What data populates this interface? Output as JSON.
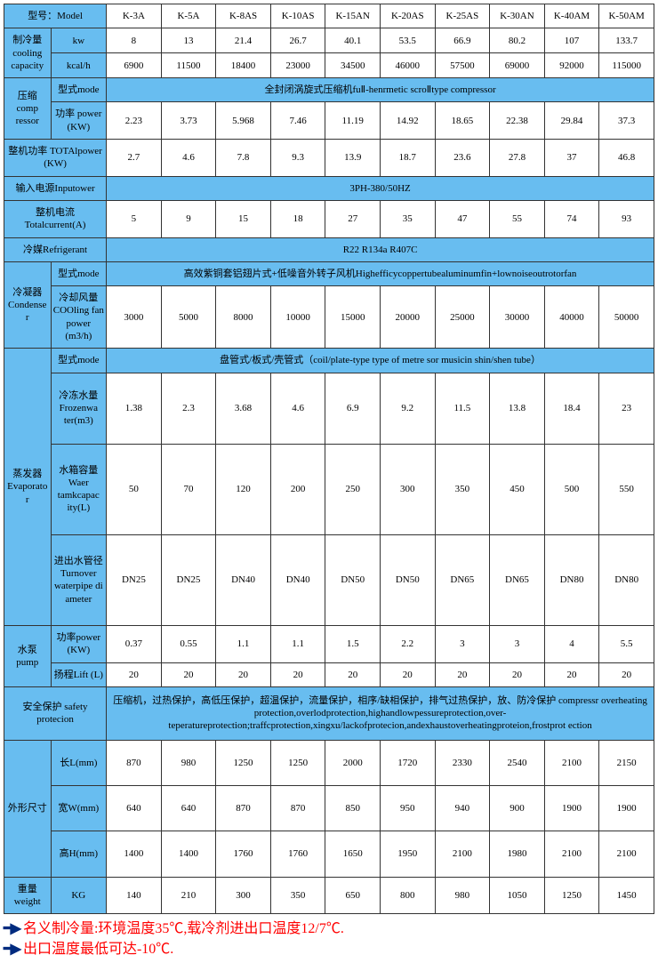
{
  "colors": {
    "header_bg": "#68bdf0",
    "cell_bg": "#ffffff",
    "border": "#333333",
    "note_text": "#ff0000",
    "arrow": "#002b7f"
  },
  "models": [
    "K-3A",
    "K-5A",
    "K-8AS",
    "K-10AS",
    "K-15AN",
    "K-20AS",
    "K-25AS",
    "K-30AN",
    "K-40AM",
    "K-50AM"
  ],
  "labels": {
    "model": "型号：Model",
    "cooling": "制冷量\ncooling\ncapacity",
    "kw": "kw",
    "kcalh": "kcal/h",
    "compressor": "压缩\ncomp\nressor",
    "mode": "型式mode",
    "power_kw": "功率\npower\n(KW)",
    "total_power": "整机功率\nTOTAlpower\n(KW)",
    "input_power": "输入电源Inputower",
    "total_current": "整机电流\nTotalcurrent(A)",
    "refrigerant": "冷媒Refrigerant",
    "condenser": "冷凝器\nCondense\nr",
    "cooling_fan": "冷却风量\nCOOling\nfan power\n(m3/h)",
    "evaporator": "蒸发器\nEvaporato\nr",
    "frozen_water": "冷冻水量\nFrozenwa\nter(m3)",
    "tank_cap": "水箱容量\nWaer\ntamkcapac\nity(L)",
    "pipe_dia": "进出水管径\nTurnover\nwaterpipe\ndi ameter",
    "pump": "水泵\npump",
    "pump_power": "功率power\n(KW)",
    "lift": "扬程Lift\n(L)",
    "safety": "安全保护\nsafety protecion",
    "dimensions": "外形尺寸",
    "length": "长L(mm)",
    "width": "宽W(mm)",
    "height": "高H(mm)",
    "weight": "重量\nweight",
    "kg": "KG"
  },
  "spans": {
    "compressor_mode": "全封闭涡旋式压缩机fuⅡ-henrmetic scroⅡtype compressor",
    "input_power": "3PH-380/50HZ",
    "refrigerant": "R22 R134a R407C",
    "condenser_mode": "高效紫铜套铝翅片式+低噪音外转子风机Highefficycoppertubealuminumfin+lownoiseoutrotorfan",
    "evaporator_mode": "盘管式/板式/壳管式（coil/plate-type type of metre sor musicin shin/shen tube）",
    "safety": "压缩机，过热保护，高低压保护，超温保护，流量保护，相序/缺相保护，排气过热保护，放、防冷保护\ncompressr overheating protection,overlodprotection,highandlowpessureprotection,over-\nteperatureprotection;traffcprotection,xingxu/lackofprotecion,andexhaustoverheatingproteion,frostprot\nection"
  },
  "rows": {
    "kw": [
      "8",
      "13",
      "21.4",
      "26.7",
      "40.1",
      "53.5",
      "66.9",
      "80.2",
      "107",
      "133.7"
    ],
    "kcalh": [
      "6900",
      "11500",
      "18400",
      "23000",
      "34500",
      "46000",
      "57500",
      "69000",
      "92000",
      "115000"
    ],
    "comp_power": [
      "2.23",
      "3.73",
      "5.968",
      "7.46",
      "11.19",
      "14.92",
      "18.65",
      "22.38",
      "29.84",
      "37.3"
    ],
    "total_power": [
      "2.7",
      "4.6",
      "7.8",
      "9.3",
      "13.9",
      "18.7",
      "23.6",
      "27.8",
      "37",
      "46.8"
    ],
    "total_current": [
      "5",
      "9",
      "15",
      "18",
      "27",
      "35",
      "47",
      "55",
      "74",
      "93"
    ],
    "fan_power": [
      "3000",
      "5000",
      "8000",
      "10000",
      "15000",
      "20000",
      "25000",
      "30000",
      "40000",
      "50000"
    ],
    "frozen_water": [
      "1.38",
      "2.3",
      "3.68",
      "4.6",
      "6.9",
      "9.2",
      "11.5",
      "13.8",
      "18.4",
      "23"
    ],
    "tank_cap": [
      "50",
      "70",
      "120",
      "200",
      "250",
      "300",
      "350",
      "450",
      "500",
      "550"
    ],
    "pipe_dia": [
      "DN25",
      "DN25",
      "DN40",
      "DN40",
      "DN50",
      "DN50",
      "DN65",
      "DN65",
      "DN80",
      "DN80"
    ],
    "pump_power": [
      "0.37",
      "0.55",
      "1.1",
      "1.1",
      "1.5",
      "2.2",
      "3",
      "3",
      "4",
      "5.5"
    ],
    "lift": [
      "20",
      "20",
      "20",
      "20",
      "20",
      "20",
      "20",
      "20",
      "20",
      "20"
    ],
    "length": [
      "870",
      "980",
      "1250",
      "1250",
      "2000",
      "1720",
      "2330",
      "2540",
      "2100",
      "2150"
    ],
    "width": [
      "640",
      "640",
      "870",
      "870",
      "850",
      "950",
      "940",
      "900",
      "1900",
      "1900"
    ],
    "height": [
      "1400",
      "1400",
      "1760",
      "1760",
      "1650",
      "1950",
      "2100",
      "1980",
      "2100",
      "2100"
    ],
    "weight": [
      "140",
      "210",
      "300",
      "350",
      "650",
      "800",
      "980",
      "1050",
      "1250",
      "1450"
    ]
  },
  "notes": [
    "名义制冷量:环境温度35℃,载冷剂进出口温度12/7℃.",
    "出口温度最低可达-10℃."
  ]
}
